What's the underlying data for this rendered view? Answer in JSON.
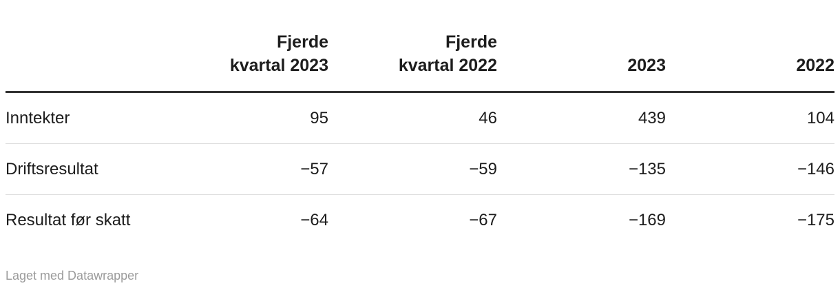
{
  "chart_data": {
    "type": "table",
    "categories": [
      "Fjerde kvartal 2023",
      "Fjerde kvartal 2022",
      "2023",
      "2022"
    ],
    "series": [
      {
        "name": "Inntekter",
        "values": [
          95,
          46,
          439,
          104
        ]
      },
      {
        "name": "Driftsresultat",
        "values": [
          -57,
          -59,
          -135,
          -146
        ]
      },
      {
        "name": "Resultat før skatt",
        "values": [
          -64,
          -67,
          -169,
          -175
        ]
      }
    ],
    "title": "",
    "note": "Laget med Datawrapper"
  },
  "table": {
    "columns": [
      {
        "lines": [
          "",
          ""
        ]
      },
      {
        "lines": [
          "Fjerde",
          "kvartal 2023"
        ]
      },
      {
        "lines": [
          "Fjerde",
          "kvartal 2022"
        ]
      },
      {
        "lines": [
          "2023"
        ]
      },
      {
        "lines": [
          "2022"
        ]
      }
    ],
    "rows": [
      {
        "label": "Inntekter",
        "values": [
          "95",
          "46",
          "439",
          "104"
        ]
      },
      {
        "label": "Driftsresultat",
        "values": [
          "−57",
          "−59",
          "−135",
          "−146"
        ]
      },
      {
        "label": "Resultat før skatt",
        "values": [
          "−64",
          "−67",
          "−169",
          "−175"
        ]
      }
    ]
  },
  "footer": {
    "credit": "Laget med Datawrapper"
  },
  "colors": {
    "text": "#1d1d1d",
    "header_rule": "#333333",
    "row_rule": "#dddddd",
    "credit_text": "#9b9b9b",
    "background": "#ffffff"
  }
}
